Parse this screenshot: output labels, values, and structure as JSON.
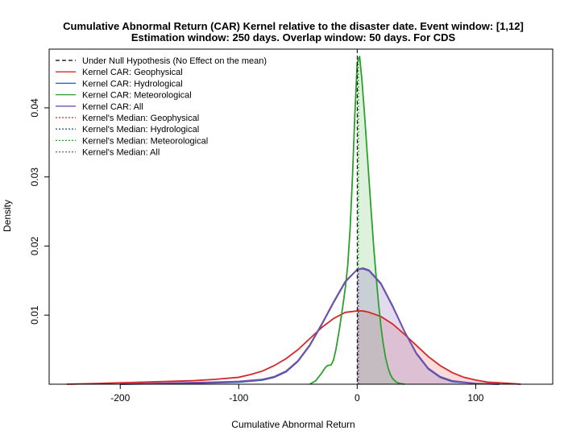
{
  "chart_data": {
    "type": "line",
    "title_line1": "Cumulative Abnormal Return (CAR) Kernel relative to the disaster date. Event window: [1,12]",
    "title_line2": "Estimation window: 250 days. Overlap window: 50 days. For CDS",
    "xlabel": "Cumulative Abnormal Return",
    "ylabel": "Density",
    "xlim": [
      -260,
      165
    ],
    "ylim": [
      0,
      0.0485
    ],
    "x_ticks": [
      -200,
      -100,
      0,
      100
    ],
    "y_ticks": [
      0.01,
      0.02,
      0.03,
      0.04
    ],
    "x_tick_labels": [
      "-200",
      "-100",
      "0",
      "100"
    ],
    "y_tick_labels": [
      "0.01",
      "0.02",
      "0.03",
      "0.04"
    ],
    "grid": false,
    "legend_position": "top-left",
    "null_line_x": 0,
    "legend": [
      {
        "label": "Under Null Hypothesis (No Effect on the mean)",
        "color": "#000000",
        "dash": "dashed"
      },
      {
        "label": "Kernel CAR: Geophysical",
        "color": "#d62728",
        "dash": "solid"
      },
      {
        "label": "Kernel CAR: Hydrological",
        "color": "#1f5fa8",
        "dash": "solid"
      },
      {
        "label": "Kernel CAR: Meteorological",
        "color": "#2ca02c",
        "dash": "solid"
      },
      {
        "label": "Kernel CAR: All",
        "color": "#7a4fa8",
        "dash": "solid"
      },
      {
        "label": "Kernel's Median: Geophysical",
        "color": "#d62728",
        "dash": "dotted"
      },
      {
        "label": "Kernel's Median: Hydrological",
        "color": "#1f5fa8",
        "dash": "dotted"
      },
      {
        "label": "Kernel's Median: Meteorological",
        "color": "#2ca02c",
        "dash": "dotted"
      },
      {
        "label": "Kernel's Median: All",
        "color": "#7a4fa8",
        "dash": "dotted"
      }
    ],
    "series": [
      {
        "category": "Geophysical",
        "color": "#d62728",
        "fill": "rgba(230,90,90,0.22)",
        "median": 1,
        "x": [
          -245,
          -220,
          -200,
          -180,
          -160,
          -140,
          -120,
          -100,
          -90,
          -80,
          -70,
          -60,
          -50,
          -40,
          -30,
          -20,
          -10,
          0,
          5,
          10,
          20,
          30,
          40,
          50,
          60,
          70,
          80,
          90,
          100,
          110,
          120,
          130,
          138
        ],
        "y": [
          0.0,
          0.0001,
          0.0002,
          0.0003,
          0.0004,
          0.0005,
          0.0007,
          0.001,
          0.0014,
          0.0019,
          0.0027,
          0.0037,
          0.005,
          0.0066,
          0.0082,
          0.0095,
          0.0104,
          0.0106,
          0.0106,
          0.0104,
          0.0098,
          0.0087,
          0.0072,
          0.0056,
          0.004,
          0.0027,
          0.0017,
          0.001,
          0.0006,
          0.0003,
          0.0002,
          0.0001,
          0.0
        ]
      },
      {
        "category": "Hydrological",
        "color": "#1f5fa8",
        "fill": "none",
        "median": 1,
        "x": [
          -200,
          -150,
          -120,
          -100,
          -80,
          -70,
          -60,
          -50,
          -40,
          -30,
          -20,
          -10,
          0,
          5,
          10,
          20,
          30,
          40,
          50,
          60,
          70,
          80,
          100,
          120
        ],
        "y": [
          0.0,
          0.0001,
          0.0002,
          0.0003,
          0.0006,
          0.001,
          0.0018,
          0.0033,
          0.0056,
          0.0086,
          0.0118,
          0.0148,
          0.0166,
          0.0168,
          0.0165,
          0.0146,
          0.0113,
          0.0076,
          0.0044,
          0.0022,
          0.001,
          0.0004,
          0.0001,
          0.0
        ]
      },
      {
        "category": "Meteorological",
        "color": "#2ca02c",
        "fill": "rgba(120,200,120,0.25)",
        "median": 1,
        "x": [
          -40,
          -35,
          -30,
          -27,
          -25,
          -22,
          -20,
          -18,
          -15,
          -12,
          -10,
          -8,
          -6,
          -4,
          -2,
          0,
          2,
          4,
          6,
          8,
          10,
          12,
          14,
          16,
          18,
          20,
          22,
          24,
          26,
          28,
          30,
          33,
          36,
          40
        ],
        "y": [
          0.0,
          0.0005,
          0.0016,
          0.0024,
          0.0027,
          0.0028,
          0.0035,
          0.005,
          0.008,
          0.0115,
          0.014,
          0.0172,
          0.0225,
          0.03,
          0.039,
          0.0465,
          0.0475,
          0.044,
          0.0395,
          0.0345,
          0.0295,
          0.0245,
          0.0197,
          0.0155,
          0.0117,
          0.0084,
          0.0058,
          0.0038,
          0.0024,
          0.0014,
          0.0008,
          0.0003,
          0.0001,
          0.0
        ]
      },
      {
        "category": "All",
        "color": "#7a4fa8",
        "fill": "rgba(140,110,190,0.25)",
        "median": 1,
        "x": [
          -200,
          -150,
          -120,
          -100,
          -80,
          -70,
          -60,
          -50,
          -40,
          -30,
          -20,
          -10,
          0,
          5,
          10,
          20,
          30,
          40,
          50,
          60,
          70,
          80,
          100,
          120
        ],
        "y": [
          0.0,
          0.0002,
          0.0003,
          0.0004,
          0.0007,
          0.0011,
          0.0019,
          0.0034,
          0.0057,
          0.0087,
          0.0119,
          0.0149,
          0.0166,
          0.0167,
          0.0164,
          0.0145,
          0.0112,
          0.0076,
          0.0045,
          0.0023,
          0.0011,
          0.0005,
          0.0001,
          0.0
        ]
      }
    ]
  }
}
